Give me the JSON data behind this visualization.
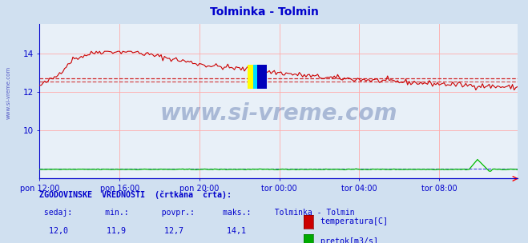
{
  "title": "Tolminka - Tolmin",
  "title_color": "#0000cc",
  "bg_color": "#d0e0f0",
  "plot_bg_color": "#e8f0f8",
  "grid_color": "#ffaaaa",
  "axis_color": "#0000cc",
  "xlabel_ticks": [
    "pon 12:00",
    "pon 16:00",
    "pon 20:00",
    "tor 00:00",
    "tor 04:00",
    "tor 08:00"
  ],
  "yticks_left": [
    10,
    12,
    14
  ],
  "ylim_left": [
    7.5,
    15.5
  ],
  "ylim_right": [
    0,
    25
  ],
  "temp_avg": 12.7,
  "temp_min_hist": 12.55,
  "temp_color": "#cc0000",
  "flow_color": "#00bb00",
  "flow_avg": 1.6,
  "watermark_text": "www.si-vreme.com",
  "watermark_color": "#1a3a8a",
  "watermark_alpha": 0.3,
  "footer_color": "#0000cc",
  "n_points": 288,
  "sidebar_color": "#0000aa"
}
